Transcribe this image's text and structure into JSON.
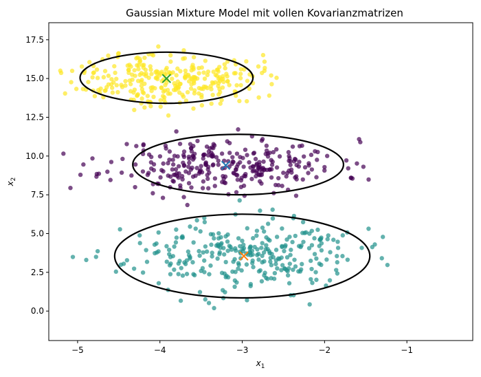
{
  "chart_data": {
    "type": "scatter",
    "title": "Gaussian Mixture Model mit vollen Kovarianzmatrizen",
    "xlabel": "x",
    "xlabel_sub": "1",
    "ylabel": "x",
    "ylabel_sub": "2",
    "xlim": [
      -5.35,
      -0.2
    ],
    "ylim": [
      -1.9,
      18.6
    ],
    "xticks": [
      -5,
      -4,
      -3,
      -2,
      -1
    ],
    "xtick_labels": [
      "−5",
      "−4",
      "−3",
      "−2",
      "−1"
    ],
    "yticks": [
      0.0,
      2.5,
      5.0,
      7.5,
      10.0,
      12.5,
      15.0,
      17.5
    ],
    "ytick_labels": [
      "0.0",
      "2.5",
      "5.0",
      "7.5",
      "10.0",
      "12.5",
      "15.0",
      "17.5"
    ],
    "grid": false,
    "clusters": [
      {
        "color": "#440154",
        "n_points": 300,
        "point_mean": [
          -3.2,
          9.4
        ],
        "point_std": [
          0.7,
          0.85
        ],
        "point_seed": 11,
        "mean": [
          -3.2,
          9.4
        ],
        "center_marker_color": "#1f77b4",
        "ellipse": {
          "cx": -3.05,
          "cy": 9.45,
          "rx": 1.28,
          "ry": 1.95
        }
      },
      {
        "color": "#21918c",
        "n_points": 300,
        "point_mean": [
          -3.0,
          3.6
        ],
        "point_std": [
          0.7,
          1.15
        ],
        "point_seed": 23,
        "mean": [
          -2.98,
          3.55
        ],
        "center_marker_color": "#ff7f0e",
        "ellipse": {
          "cx": -3.0,
          "cy": 3.55,
          "rx": 1.55,
          "ry": 2.7
        }
      },
      {
        "color": "#fde725",
        "n_points": 300,
        "point_mean": [
          -3.9,
          15.0
        ],
        "point_std": [
          0.55,
          0.85
        ],
        "point_seed": 37,
        "mean": [
          -3.92,
          15.0
        ],
        "center_marker_color": "#2ca02c",
        "ellipse": {
          "cx": -3.92,
          "cy": 15.05,
          "rx": 1.05,
          "ry": 1.65
        }
      }
    ]
  }
}
